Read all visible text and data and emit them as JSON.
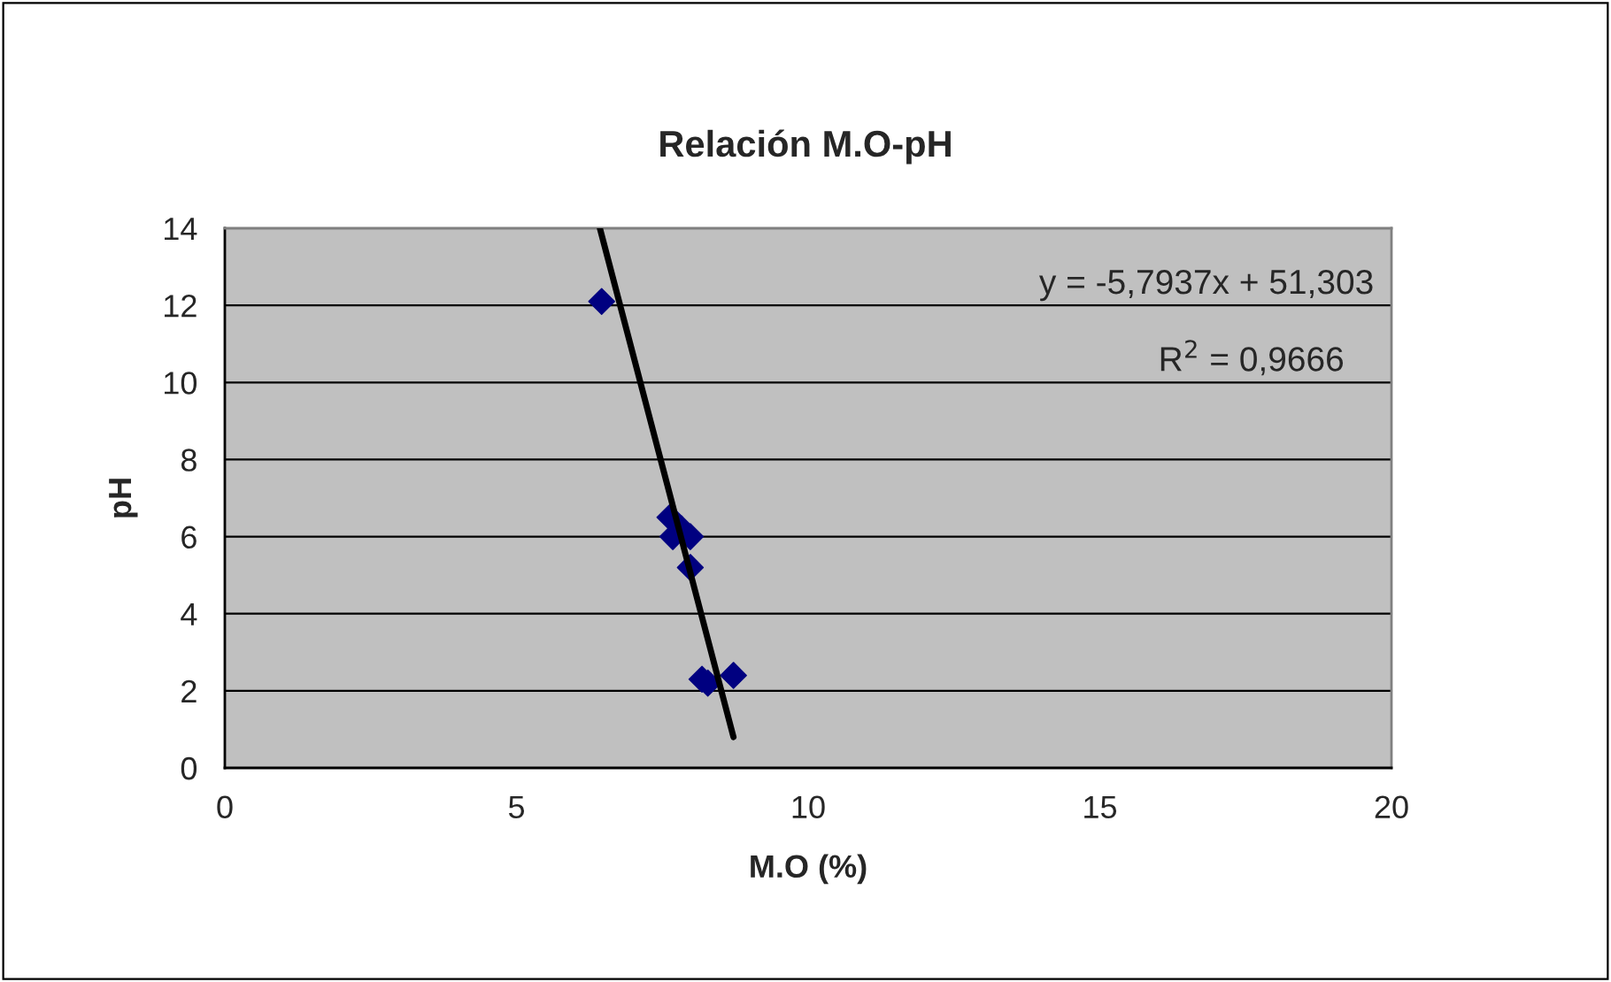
{
  "chart_data": {
    "type": "scatter",
    "title": "Relación M.O-pH",
    "xlabel": "M.O (%)",
    "ylabel": "pH",
    "series": [
      {
        "color": "#000080",
        "marker": "diamond",
        "x": [
          6.46,
          7.63,
          7.68,
          7.83,
          7.98,
          7.98,
          8.18,
          8.28,
          8.72
        ],
        "values": [
          12.1,
          6.5,
          6.0,
          6.2,
          6.0,
          5.2,
          2.3,
          2.2,
          2.4
        ]
      },
      {
        "type": "line",
        "color": "#000000",
        "marker": "none",
        "x": [
          6.43,
          8.72
        ],
        "values": [
          14.0,
          0.8
        ]
      }
    ],
    "annotations": [
      "y = -5,7937x + 51,303",
      "R$^{2}$ = 0,9666"
    ],
    "xlim": [
      0,
      20
    ],
    "xticks": [
      0,
      5,
      10,
      15,
      20
    ],
    "ylim": [
      0,
      14
    ],
    "yticks": [
      0,
      2,
      4,
      6,
      8,
      10,
      12,
      14
    ],
    "grid": "y",
    "legend": false
  }
}
